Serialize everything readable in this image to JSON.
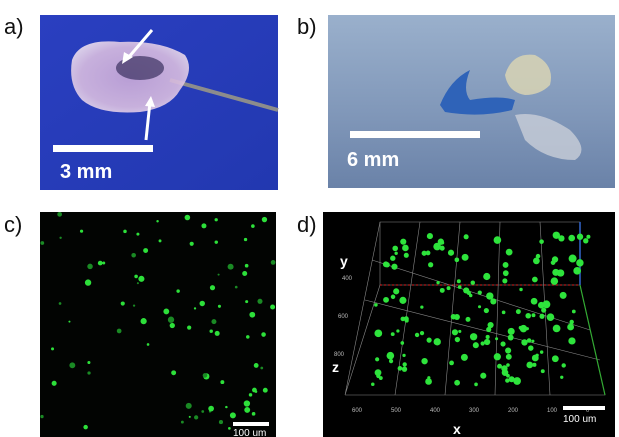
{
  "panels": [
    {
      "label": "a)",
      "scale_bar": "3 mm"
    },
    {
      "label": "b)",
      "scale_bar": "6 mm"
    },
    {
      "label": "c)",
      "scale_bar": "100 um"
    },
    {
      "label": "d)",
      "scale_bar": "100 um",
      "axes": {
        "x": "x",
        "y": "y",
        "z": "z"
      },
      "x_ticks": [
        "600",
        "500",
        "400",
        "300",
        "200",
        "100",
        "0"
      ],
      "side_ticks": [
        "400",
        "600",
        "800"
      ]
    }
  ]
}
